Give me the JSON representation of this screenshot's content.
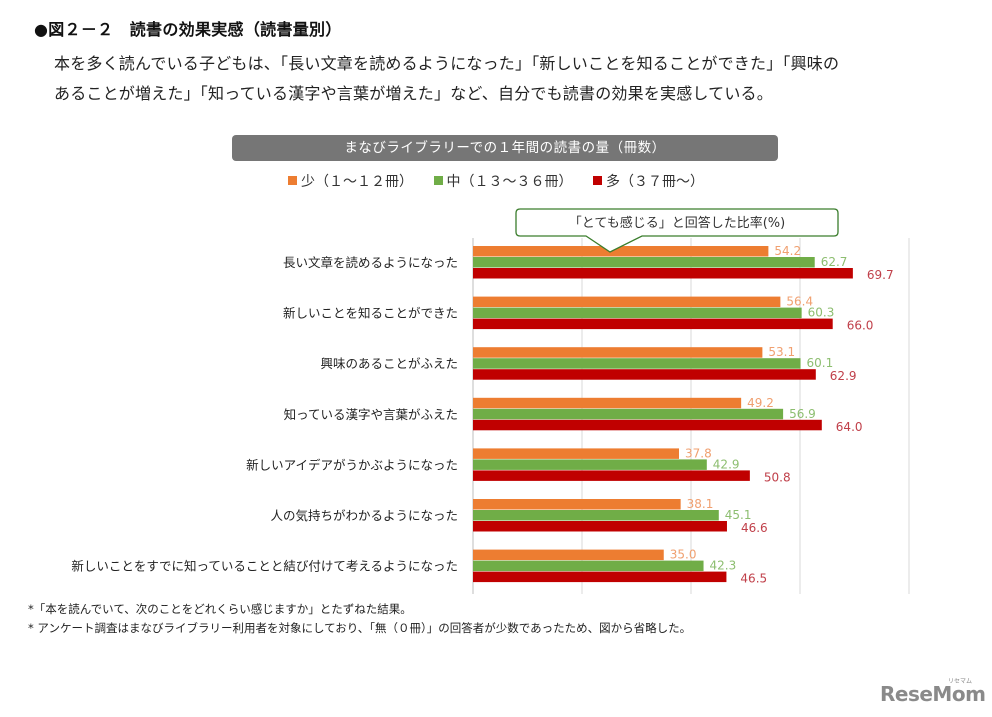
{
  "header": {
    "figure_title": "●図２－２　読書の効果実感（読書量別）",
    "lead_line1": "本を多く読んでいる子どもは、「長い文章を読めるようになった」「新しいことを知ることができた」「興味の",
    "lead_line2": "あることが増えた」「知っている漢字や言葉が増えた」など、自分でも読書の効果を実感している。"
  },
  "chart_data": {
    "type": "bar",
    "orientation": "horizontal",
    "title": "まなびライブラリーでの１年間の読書の量（冊数）",
    "annotation": "「とても感じる」と回答した比率(%)",
    "categories": [
      "長い文章を読めるようになった",
      "新しいことを知ることができた",
      "興味のあることがふえた",
      "知っている漢字や言葉がふえた",
      "新しいアイデアがうかぶようになった",
      "人の気持ちがわかるようになった",
      "新しいことをすでに知っていることと結び付けて考えるようになった"
    ],
    "series": [
      {
        "name": "少（１～１２冊）",
        "color": "#ED7D31",
        "label_color": "#F0A070",
        "values": [
          54.2,
          56.4,
          53.1,
          49.2,
          37.8,
          38.1,
          35.0
        ],
        "labels": [
          "54.2",
          "56.4",
          "53.1",
          "49.2",
          "37.8",
          "38.1",
          "35.0"
        ]
      },
      {
        "name": "中（１３～３６冊）",
        "color": "#70AD47",
        "label_color": "#8DBE70",
        "values": [
          62.7,
          60.3,
          60.1,
          56.9,
          42.9,
          45.1,
          42.3
        ],
        "labels": [
          "62.7",
          "60.3",
          "60.1",
          "56.9",
          "42.9",
          "45.1",
          "42.3"
        ]
      },
      {
        "name": "多（３７冊～）",
        "color": "#C00000",
        "label_color": "#C0404A",
        "values": [
          69.7,
          66.0,
          62.9,
          64.0,
          50.8,
          46.6,
          46.5
        ],
        "labels": [
          "69.7",
          "66.0",
          "62.9",
          "64.0",
          "50.8",
          "46.6",
          "46.5"
        ]
      }
    ],
    "xlim": [
      0,
      80
    ],
    "gridlines_at": [
      20,
      40,
      60,
      80
    ],
    "grid": true,
    "legend_position": "top-center",
    "xlabel": "",
    "ylabel": ""
  },
  "footnotes": {
    "note1": "*「本を読んでいて、次のことをどれくらい感じますか」とたずねた結果。",
    "note2": "*  アンケート調査はまなびライブラリー利用者を対象にしており、「無（０冊）」の回答者が少数であったため、図から省略した。"
  },
  "logo": {
    "text": "ReseMom",
    "small_text": "リセマム"
  }
}
